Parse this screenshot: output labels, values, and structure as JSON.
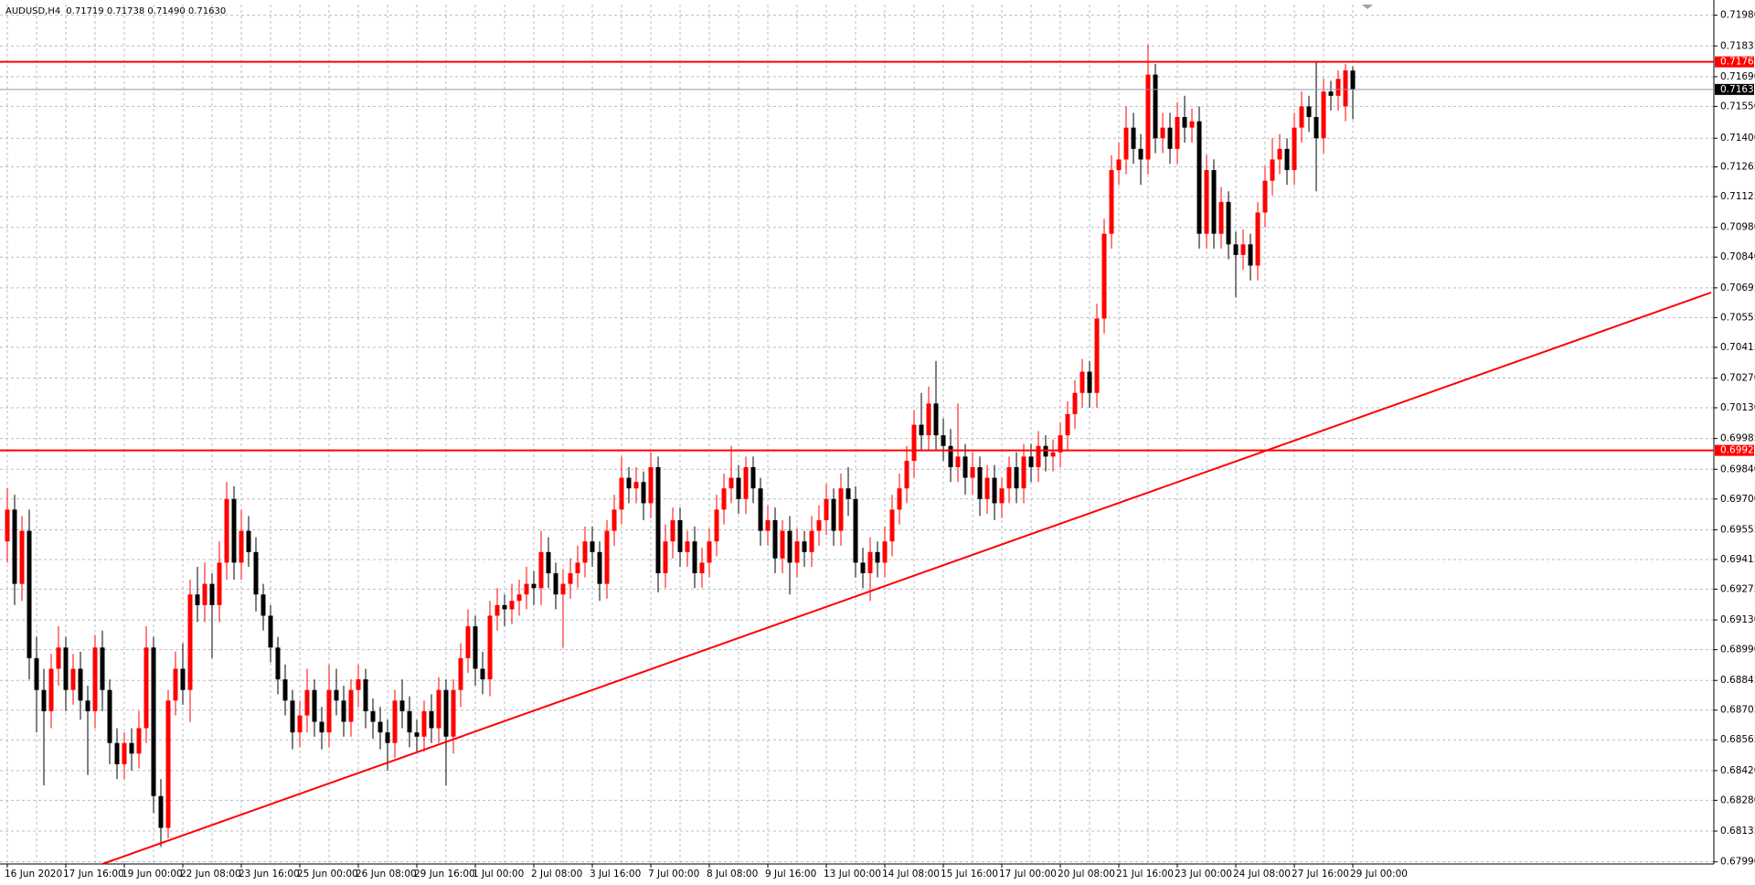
{
  "chart_data": {
    "type": "candlestick",
    "title": "AUDUSD,H4",
    "ohlc_text": "0.71719 0.71738 0.71490 0.71630",
    "up_color": "#ff0000",
    "down_color": "#000000",
    "grid": true,
    "ylim": [
      0.6798,
      0.7203
    ],
    "yticks": [
      {
        "value": 0.7198,
        "label": "0.71980"
      },
      {
        "value": 0.71835,
        "label": "0.71835"
      },
      {
        "value": 0.7169,
        "label": "0.71690"
      },
      {
        "value": 0.7155,
        "label": "0.71550"
      },
      {
        "value": 0.714,
        "label": "0.71400"
      },
      {
        "value": 0.71265,
        "label": "0.71265"
      },
      {
        "value": 0.71125,
        "label": "0.71125"
      },
      {
        "value": 0.7098,
        "label": "0.70980"
      },
      {
        "value": 0.7084,
        "label": "0.70840"
      },
      {
        "value": 0.70695,
        "label": "0.70695"
      },
      {
        "value": 0.70555,
        "label": "0.70555"
      },
      {
        "value": 0.70415,
        "label": "0.70415"
      },
      {
        "value": 0.7027,
        "label": "0.70270"
      },
      {
        "value": 0.7013,
        "label": "0.70130"
      },
      {
        "value": 0.69985,
        "label": "0.69985"
      },
      {
        "value": 0.6984,
        "label": "0.69840"
      },
      {
        "value": 0.697,
        "label": "0.69700"
      },
      {
        "value": 0.69555,
        "label": "0.69555"
      },
      {
        "value": 0.69415,
        "label": "0.69415"
      },
      {
        "value": 0.69275,
        "label": "0.69275"
      },
      {
        "value": 0.6913,
        "label": "0.69130"
      },
      {
        "value": 0.6899,
        "label": "0.68990"
      },
      {
        "value": 0.68845,
        "label": "0.68845"
      },
      {
        "value": 0.68705,
        "label": "0.68705"
      },
      {
        "value": 0.68565,
        "label": "0.68565"
      },
      {
        "value": 0.6842,
        "label": "0.68420"
      },
      {
        "value": 0.6828,
        "label": "0.68280"
      },
      {
        "value": 0.68135,
        "label": "0.68135"
      },
      {
        "value": 0.6799,
        "label": "0.67990"
      }
    ],
    "hlines": [
      {
        "value": 0.7176,
        "label": "0.71760",
        "color": "#ff0000"
      },
      {
        "value": 0.7163,
        "label": "0.71630",
        "color": "#8a9bb0"
      },
      {
        "value": 0.69929,
        "label": "0.69929",
        "color": "#ff0000"
      }
    ],
    "trendline": {
      "x": [
        13,
        233
      ],
      "y": [
        0.6798,
        0.70673
      ],
      "color": "#ff0000"
    },
    "categories": [
      "16 Jun 2020",
      null,
      null,
      null,
      null,
      null,
      null,
      null,
      "17 Jun 16:00",
      null,
      null,
      null,
      null,
      null,
      null,
      null,
      "19 Jun 00:00",
      null,
      null,
      null,
      null,
      null,
      null,
      null,
      "22 Jun 08:00",
      null,
      null,
      null,
      null,
      null,
      null,
      null,
      "23 Jun 16:00",
      null,
      null,
      null,
      null,
      null,
      null,
      null,
      "25 Jun 00:00",
      null,
      null,
      null,
      null,
      null,
      null,
      null,
      "26 Jun 08:00",
      null,
      null,
      null,
      null,
      null,
      null,
      null,
      "29 Jun 16:00",
      null,
      null,
      null,
      null,
      null,
      null,
      null,
      "1 Jul 00:00",
      null,
      null,
      null,
      null,
      null,
      null,
      null,
      "2 Jul 08:00",
      null,
      null,
      null,
      null,
      null,
      null,
      null,
      "3 Jul 16:00",
      null,
      null,
      null,
      null,
      null,
      null,
      null,
      "7 Jul 00:00",
      null,
      null,
      null,
      null,
      null,
      null,
      null,
      "8 Jul 08:00",
      null,
      null,
      null,
      null,
      null,
      null,
      null,
      "9 Jul 16:00",
      null,
      null,
      null,
      null,
      null,
      null,
      null,
      "13 Jul 00:00",
      null,
      null,
      null,
      null,
      null,
      null,
      null,
      "14 Jul 08:00",
      null,
      null,
      null,
      null,
      null,
      null,
      null,
      "15 Jul 16:00",
      null,
      null,
      null,
      null,
      null,
      null,
      null,
      "17 Jul 00:00",
      null,
      null,
      null,
      null,
      null,
      null,
      null,
      "20 Jul 08:00",
      null,
      null,
      null,
      null,
      null,
      null,
      null,
      "21 Jul 16:00",
      null,
      null,
      null,
      null,
      null,
      null,
      null,
      "23 Jul 00:00",
      null,
      null,
      null,
      null,
      null,
      null,
      null,
      "24 Jul 08:00",
      null,
      null,
      null,
      null,
      null,
      null,
      null,
      "27 Jul 16:00",
      null,
      null,
      null,
      null,
      null,
      null,
      null,
      "29 Jul 00:00"
    ],
    "open": [
      0.695,
      0.6965,
      0.693,
      0.6955,
      0.6895,
      0.688,
      0.687,
      0.689,
      0.69,
      0.688,
      0.689,
      0.6875,
      0.687,
      0.69,
      0.688,
      0.6855,
      0.6845,
      0.6855,
      0.685,
      0.6862,
      0.69,
      0.683,
      0.6815,
      0.6875,
      0.689,
      0.688,
      0.6925,
      0.692,
      0.693,
      0.692,
      0.694,
      0.697,
      0.694,
      0.6955,
      0.6945,
      0.6925,
      0.6915,
      0.69,
      0.6885,
      0.6875,
      0.686,
      0.6868,
      0.688,
      0.6865,
      0.686,
      0.688,
      0.6875,
      0.6865,
      0.688,
      0.6885,
      0.687,
      0.6865,
      0.686,
      0.6855,
      0.6875,
      0.687,
      0.686,
      0.6858,
      0.687,
      0.6862,
      0.688,
      0.6858,
      0.688,
      0.6895,
      0.691,
      0.689,
      0.6885,
      0.6915,
      0.692,
      0.6918,
      0.6922,
      0.6925,
      0.693,
      0.6928,
      0.6945,
      0.6935,
      0.6925,
      0.693,
      0.6935,
      0.694,
      0.695,
      0.6945,
      0.693,
      0.6955,
      0.6965,
      0.698,
      0.6975,
      0.6978,
      0.6968,
      0.6985,
      0.6935,
      0.695,
      0.696,
      0.6945,
      0.695,
      0.6935,
      0.694,
      0.695,
      0.6965,
      0.6975,
      0.698,
      0.697,
      0.6985,
      0.6975,
      0.6955,
      0.696,
      0.6942,
      0.6955,
      0.694,
      0.695,
      0.6945,
      0.6955,
      0.696,
      0.697,
      0.6955,
      0.6975,
      0.697,
      0.694,
      0.6935,
      0.6945,
      0.694,
      0.695,
      0.6965,
      0.6975,
      0.6988,
      0.7005,
      0.7,
      0.7015,
      0.7,
      0.6995,
      0.6985,
      0.699,
      0.698,
      0.6985,
      0.697,
      0.698,
      0.6968,
      0.6975,
      0.6985,
      0.6975,
      0.699,
      0.6985,
      0.6995,
      0.699,
      0.6992,
      0.7,
      0.701,
      0.702,
      0.703,
      0.702,
      0.7055,
      0.7095,
      0.7125,
      0.713,
      0.7145,
      0.7135,
      0.713,
      0.717,
      0.714,
      0.7145,
      0.7135,
      0.715,
      0.7145,
      0.7148,
      0.7095,
      0.7125,
      0.7095,
      0.711,
      0.709,
      0.7085,
      0.709,
      0.708,
      0.7105,
      0.712,
      0.713,
      0.7135,
      0.7125,
      0.7145,
      0.7155,
      0.715,
      0.714,
      0.7162,
      0.716,
      0.7155,
      0.71719
    ],
    "high": [
      0.6975,
      0.6972,
      0.6962,
      0.6965,
      0.6905,
      0.689,
      0.6897,
      0.691,
      0.6905,
      0.6897,
      0.6898,
      0.6882,
      0.6906,
      0.6908,
      0.6885,
      0.6862,
      0.686,
      0.6862,
      0.687,
      0.691,
      0.6905,
      0.6838,
      0.688,
      0.6898,
      0.6902,
      0.6932,
      0.6938,
      0.694,
      0.6935,
      0.695,
      0.6978,
      0.6976,
      0.6965,
      0.6962,
      0.6952,
      0.693,
      0.692,
      0.6905,
      0.6892,
      0.688,
      0.6875,
      0.689,
      0.6885,
      0.6872,
      0.6892,
      0.689,
      0.6882,
      0.6885,
      0.6892,
      0.689,
      0.6876,
      0.6872,
      0.6866,
      0.688,
      0.6885,
      0.6877,
      0.6866,
      0.6875,
      0.6878,
      0.6886,
      0.6885,
      0.6885,
      0.6902,
      0.6918,
      0.6915,
      0.6898,
      0.6922,
      0.6928,
      0.6925,
      0.693,
      0.6932,
      0.6938,
      0.6936,
      0.6955,
      0.6952,
      0.694,
      0.6937,
      0.6942,
      0.6948,
      0.6957,
      0.6957,
      0.695,
      0.696,
      0.6972,
      0.699,
      0.6985,
      0.6985,
      0.6983,
      0.6992,
      0.699,
      0.6958,
      0.6966,
      0.6966,
      0.6955,
      0.6957,
      0.6947,
      0.6956,
      0.6972,
      0.6982,
      0.6995,
      0.6986,
      0.699,
      0.699,
      0.698,
      0.6967,
      0.6966,
      0.696,
      0.6962,
      0.6956,
      0.6955,
      0.6962,
      0.6967,
      0.6977,
      0.6975,
      0.6982,
      0.6985,
      0.6976,
      0.6947,
      0.6952,
      0.695,
      0.6957,
      0.6972,
      0.6982,
      0.6995,
      0.7012,
      0.702,
      0.7023,
      0.7035,
      0.7008,
      0.7003,
      0.7015,
      0.6996,
      0.6992,
      0.699,
      0.6986,
      0.6986,
      0.698,
      0.699,
      0.6992,
      0.6996,
      0.6996,
      0.7002,
      0.7,
      0.6998,
      0.7006,
      0.7016,
      0.7026,
      0.7036,
      0.7035,
      0.7062,
      0.7102,
      0.7132,
      0.7138,
      0.7155,
      0.7152,
      0.7142,
      0.7184,
      0.7175,
      0.7152,
      0.7152,
      0.7157,
      0.716,
      0.7154,
      0.7155,
      0.7132,
      0.713,
      0.7117,
      0.7115,
      0.7096,
      0.7097,
      0.7095,
      0.711,
      0.7127,
      0.714,
      0.7142,
      0.714,
      0.7152,
      0.7162,
      0.716,
      0.7176,
      0.7168,
      0.7167,
      0.7172,
      0.7175,
      0.71738
    ],
    "low": [
      0.694,
      0.692,
      0.6922,
      0.6885,
      0.686,
      0.6835,
      0.6862,
      0.6882,
      0.687,
      0.6873,
      0.6866,
      0.684,
      0.6862,
      0.687,
      0.6845,
      0.6838,
      0.6838,
      0.6842,
      0.6843,
      0.6855,
      0.6822,
      0.6806,
      0.681,
      0.6868,
      0.6873,
      0.6865,
      0.6912,
      0.6912,
      0.6895,
      0.6912,
      0.6932,
      0.6932,
      0.6932,
      0.6938,
      0.6917,
      0.6908,
      0.6893,
      0.6878,
      0.6868,
      0.6852,
      0.6853,
      0.686,
      0.6858,
      0.6852,
      0.6853,
      0.6868,
      0.6858,
      0.6858,
      0.6872,
      0.6862,
      0.6857,
      0.6852,
      0.6842,
      0.6848,
      0.6862,
      0.6853,
      0.685,
      0.6851,
      0.6855,
      0.6855,
      0.6835,
      0.685,
      0.6872,
      0.6888,
      0.6882,
      0.6878,
      0.6877,
      0.6908,
      0.691,
      0.6911,
      0.6915,
      0.6918,
      0.692,
      0.692,
      0.6928,
      0.6918,
      0.69,
      0.6923,
      0.6928,
      0.6933,
      0.6938,
      0.6922,
      0.6923,
      0.6948,
      0.6958,
      0.6968,
      0.6968,
      0.696,
      0.6961,
      0.6926,
      0.6928,
      0.6942,
      0.6938,
      0.6938,
      0.6928,
      0.6928,
      0.6933,
      0.6943,
      0.6958,
      0.6968,
      0.6963,
      0.6963,
      0.6968,
      0.6948,
      0.6948,
      0.6935,
      0.6935,
      0.6925,
      0.6933,
      0.6938,
      0.6938,
      0.6948,
      0.6953,
      0.6948,
      0.6948,
      0.6962,
      0.6933,
      0.6928,
      0.6922,
      0.6933,
      0.6933,
      0.6943,
      0.6958,
      0.6968,
      0.698,
      0.6993,
      0.6993,
      0.6993,
      0.6988,
      0.6978,
      0.6978,
      0.6972,
      0.6972,
      0.6962,
      0.6963,
      0.696,
      0.6961,
      0.6968,
      0.6968,
      0.6968,
      0.6978,
      0.6978,
      0.6983,
      0.6983,
      0.6985,
      0.6993,
      0.7003,
      0.7013,
      0.7013,
      0.7013,
      0.7048,
      0.7088,
      0.7118,
      0.7123,
      0.7128,
      0.7118,
      0.7123,
      0.7133,
      0.7133,
      0.7128,
      0.7128,
      0.7138,
      0.7138,
      0.7088,
      0.7088,
      0.7088,
      0.7088,
      0.7083,
      0.7065,
      0.7078,
      0.7073,
      0.7073,
      0.7098,
      0.7113,
      0.7123,
      0.7118,
      0.7118,
      0.7138,
      0.7143,
      0.7115,
      0.7133,
      0.7153,
      0.7153,
      0.7148,
      0.7149
    ],
    "close": [
      0.6965,
      0.693,
      0.6955,
      0.6895,
      0.688,
      0.687,
      0.689,
      0.69,
      0.688,
      0.689,
      0.6875,
      0.687,
      0.69,
      0.688,
      0.6855,
      0.6845,
      0.6855,
      0.685,
      0.6862,
      0.69,
      0.683,
      0.6815,
      0.6875,
      0.689,
      0.688,
      0.6925,
      0.692,
      0.693,
      0.692,
      0.694,
      0.697,
      0.694,
      0.6955,
      0.6945,
      0.6925,
      0.6915,
      0.69,
      0.6885,
      0.6875,
      0.686,
      0.6868,
      0.688,
      0.6865,
      0.686,
      0.688,
      0.6875,
      0.6865,
      0.688,
      0.6885,
      0.687,
      0.6865,
      0.686,
      0.6855,
      0.6875,
      0.687,
      0.686,
      0.6858,
      0.687,
      0.6862,
      0.688,
      0.6858,
      0.688,
      0.6895,
      0.691,
      0.689,
      0.6885,
      0.6915,
      0.692,
      0.6918,
      0.6922,
      0.6925,
      0.693,
      0.6928,
      0.6945,
      0.6935,
      0.6925,
      0.693,
      0.6935,
      0.694,
      0.695,
      0.6945,
      0.693,
      0.6955,
      0.6965,
      0.698,
      0.6975,
      0.6978,
      0.6968,
      0.6985,
      0.6935,
      0.695,
      0.696,
      0.6945,
      0.695,
      0.6935,
      0.694,
      0.695,
      0.6965,
      0.6975,
      0.698,
      0.697,
      0.6985,
      0.6975,
      0.6955,
      0.696,
      0.6942,
      0.6955,
      0.694,
      0.695,
      0.6945,
      0.6955,
      0.696,
      0.697,
      0.6955,
      0.6975,
      0.697,
      0.694,
      0.6935,
      0.6945,
      0.694,
      0.695,
      0.6965,
      0.6975,
      0.6988,
      0.7005,
      0.7,
      0.7015,
      0.7,
      0.6995,
      0.6985,
      0.699,
      0.698,
      0.6985,
      0.697,
      0.698,
      0.6968,
      0.6975,
      0.6985,
      0.6975,
      0.699,
      0.6985,
      0.6995,
      0.699,
      0.6992,
      0.7,
      0.701,
      0.702,
      0.703,
      0.702,
      0.7055,
      0.7095,
      0.7125,
      0.713,
      0.7145,
      0.7135,
      0.713,
      0.717,
      0.714,
      0.7145,
      0.7135,
      0.715,
      0.7145,
      0.7148,
      0.7095,
      0.7125,
      0.7095,
      0.711,
      0.709,
      0.7085,
      0.709,
      0.708,
      0.7105,
      0.712,
      0.713,
      0.7135,
      0.7125,
      0.7145,
      0.7155,
      0.715,
      0.714,
      0.7162,
      0.716,
      0.7168,
      0.7172,
      0.7163
    ]
  }
}
